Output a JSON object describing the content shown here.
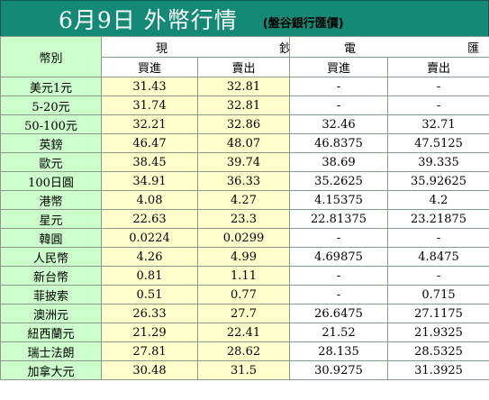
{
  "title": {
    "main": "6月9日 外幣行情",
    "sub": "(盤谷銀行匯價)"
  },
  "header": {
    "corner": "幣別",
    "cash_group": "現 鈔",
    "tt_group": "電 匯",
    "cash_buy": "買進",
    "cash_sell": "賣出",
    "tt_buy": "買進",
    "tt_sell": "賣出"
  },
  "rows": [
    {
      "currency": "美元1元",
      "cash_buy": "31.43",
      "cash_sell": "32.81",
      "tt_buy": "-",
      "tt_sell": "-"
    },
    {
      "currency": "5-20元",
      "cash_buy": "31.74",
      "cash_sell": "32.81",
      "tt_buy": "-",
      "tt_sell": "-"
    },
    {
      "currency": "50-100元",
      "cash_buy": "32.21",
      "cash_sell": "32.86",
      "tt_buy": "32.46",
      "tt_sell": "32.71"
    },
    {
      "currency": "英鎊",
      "cash_buy": "46.47",
      "cash_sell": "48.07",
      "tt_buy": "46.8375",
      "tt_sell": "47.5125"
    },
    {
      "currency": "歐元",
      "cash_buy": "38.45",
      "cash_sell": "39.74",
      "tt_buy": "38.69",
      "tt_sell": "39.335"
    },
    {
      "currency": "100日圓",
      "cash_buy": "34.91",
      "cash_sell": "36.33",
      "tt_buy": "35.2625",
      "tt_sell": "35.92625"
    },
    {
      "currency": "港幣",
      "cash_buy": "4.08",
      "cash_sell": "4.27",
      "tt_buy": "4.15375",
      "tt_sell": "4.2"
    },
    {
      "currency": "星元",
      "cash_buy": "22.63",
      "cash_sell": "23.3",
      "tt_buy": "22.81375",
      "tt_sell": "23.21875"
    },
    {
      "currency": "韓圓",
      "cash_buy": "0.0224",
      "cash_sell": "0.0299",
      "tt_buy": "-",
      "tt_sell": "-"
    },
    {
      "currency": "人民幣",
      "cash_buy": "4.26",
      "cash_sell": "4.99",
      "tt_buy": "4.69875",
      "tt_sell": "4.8475"
    },
    {
      "currency": "新台幣",
      "cash_buy": "0.81",
      "cash_sell": "1.11",
      "tt_buy": "-",
      "tt_sell": "-"
    },
    {
      "currency": "菲披索",
      "cash_buy": "0.51",
      "cash_sell": "0.77",
      "tt_buy": "-",
      "tt_sell": "0.715"
    },
    {
      "currency": "澳洲元",
      "cash_buy": "26.33",
      "cash_sell": "27.7",
      "tt_buy": "26.6475",
      "tt_sell": "27.1175"
    },
    {
      "currency": "紐西蘭元",
      "cash_buy": "21.29",
      "cash_sell": "22.41",
      "tt_buy": "21.52",
      "tt_sell": "21.9325"
    },
    {
      "currency": "瑞士法朗",
      "cash_buy": "27.81",
      "cash_sell": "28.62",
      "tt_buy": "28.135",
      "tt_sell": "28.5325"
    },
    {
      "currency": "加拿大元",
      "cash_buy": "30.48",
      "cash_sell": "31.5",
      "tt_buy": "30.9275",
      "tt_sell": "31.3925"
    }
  ]
}
